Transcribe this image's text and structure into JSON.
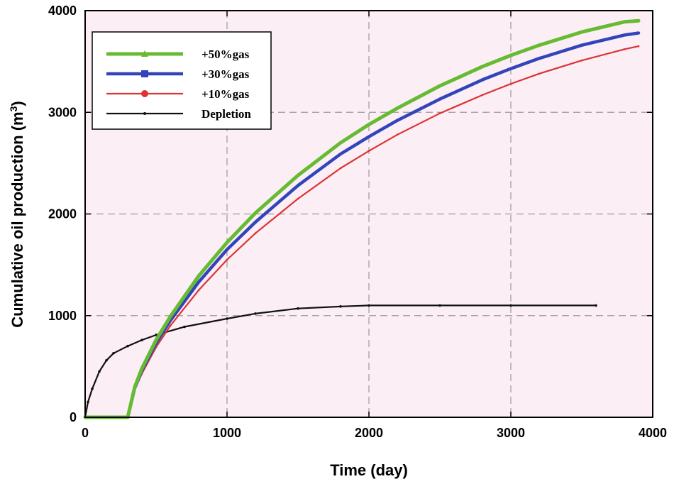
{
  "chart_data": {
    "type": "line",
    "title": "",
    "xlabel": "Time (day)",
    "ylabel": "Cumulative oil production (m",
    "ylabel_sup": "3",
    "ylabel_close": ")",
    "xlim": [
      0,
      4000
    ],
    "ylim": [
      0,
      4000
    ],
    "x_ticks": [
      0,
      1000,
      2000,
      3000,
      4000
    ],
    "y_ticks": [
      0,
      1000,
      2000,
      3000,
      4000
    ],
    "x_tick_labels": [
      "0",
      "1000",
      "2000",
      "3000",
      "4000"
    ],
    "y_tick_labels": [
      "0",
      "1000",
      "2000",
      "3000",
      "4000"
    ],
    "grid": true,
    "legend_position": "top-left",
    "background_color": "#fbeef5",
    "series": [
      {
        "name": "+50%gas",
        "color": "#66bb33",
        "marker": "triangle",
        "x": [
          0,
          100,
          200,
          300,
          350,
          400,
          500,
          600,
          800,
          1000,
          1200,
          1500,
          1800,
          2000,
          2200,
          2500,
          2800,
          3000,
          3200,
          3500,
          3800,
          3900
        ],
        "y": [
          0,
          0,
          0,
          0,
          300,
          480,
          760,
          990,
          1390,
          1720,
          2010,
          2380,
          2700,
          2880,
          3040,
          3260,
          3450,
          3560,
          3660,
          3790,
          3890,
          3900
        ]
      },
      {
        "name": "+30%gas",
        "color": "#3344bb",
        "marker": "square",
        "x": [
          300,
          350,
          400,
          500,
          600,
          800,
          1000,
          1200,
          1500,
          1800,
          2000,
          2200,
          2500,
          2800,
          3000,
          3200,
          3500,
          3800,
          3900
        ],
        "y": [
          0,
          290,
          460,
          730,
          950,
          1330,
          1650,
          1920,
          2280,
          2590,
          2760,
          2920,
          3130,
          3320,
          3430,
          3530,
          3660,
          3760,
          3780
        ]
      },
      {
        "name": "+10%gas",
        "color": "#dd3333",
        "marker": "circle",
        "x": [
          300,
          350,
          400,
          500,
          600,
          800,
          1000,
          1200,
          1500,
          1800,
          2000,
          2200,
          2500,
          2800,
          3000,
          3200,
          3500,
          3800,
          3900
        ],
        "y": [
          0,
          270,
          430,
          690,
          900,
          1250,
          1550,
          1810,
          2150,
          2450,
          2620,
          2780,
          2990,
          3170,
          3280,
          3380,
          3510,
          3620,
          3650
        ]
      },
      {
        "name": "Depletion",
        "color": "#111111",
        "marker": "dot",
        "x": [
          0,
          20,
          50,
          100,
          150,
          200,
          300,
          400,
          500,
          700,
          1000,
          1200,
          1500,
          1800,
          2000,
          2500,
          3000,
          3600
        ],
        "y": [
          0,
          150,
          280,
          450,
          560,
          630,
          700,
          760,
          810,
          890,
          970,
          1020,
          1070,
          1090,
          1100,
          1100,
          1100,
          1100
        ]
      }
    ]
  }
}
